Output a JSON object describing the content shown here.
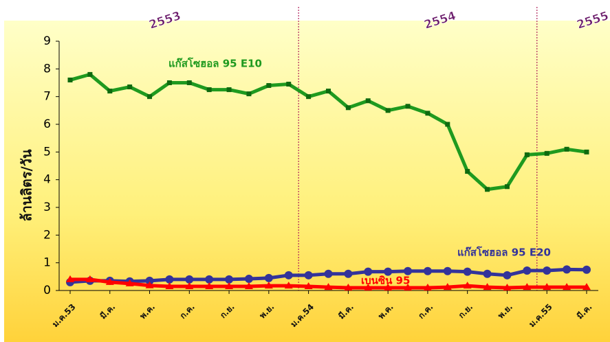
{
  "chart_data": {
    "type": "line",
    "ylabel": "ล้านลิตร/วัน",
    "annotations": [
      "2553",
      "2554",
      "2555"
    ],
    "categories": [
      "ม.ค.53",
      null,
      "มี.ค.",
      null,
      "พ.ค.",
      null,
      "ก.ค.",
      null,
      "ก.ย.",
      null,
      "พ.ย.",
      null,
      "ม.ค.54",
      null,
      "มี.ค.",
      null,
      "พ.ค.",
      null,
      "ก.ค.",
      null,
      "ก.ย.",
      null,
      "พ.ย.",
      null,
      "ม.ค.55",
      null,
      "มี.ค."
    ],
    "series": [
      {
        "name": "แก๊สโซฮอล 95 E10",
        "color": "#1f9a1f",
        "marker": "square",
        "values": [
          7.6,
          7.8,
          7.2,
          7.35,
          7.0,
          7.5,
          7.5,
          7.25,
          7.25,
          7.1,
          7.4,
          7.45,
          7.0,
          7.2,
          6.6,
          6.85,
          6.5,
          6.65,
          6.4,
          6.0,
          4.3,
          3.65,
          3.75,
          4.9,
          4.95,
          5.1,
          5.0
        ]
      },
      {
        "name": "แก๊สโซฮอล 95 E20",
        "color": "#33339a",
        "marker": "circle",
        "values": [
          0.3,
          0.35,
          0.35,
          0.33,
          0.35,
          0.4,
          0.4,
          0.4,
          0.4,
          0.42,
          0.45,
          0.55,
          0.55,
          0.6,
          0.6,
          0.68,
          0.68,
          0.7,
          0.7,
          0.7,
          0.68,
          0.6,
          0.55,
          0.72,
          0.72,
          0.76,
          0.75
        ]
      },
      {
        "name": "เบนซิน 95",
        "color": "#ff0000",
        "marker": "triangle",
        "values": [
          0.4,
          0.4,
          0.3,
          0.25,
          0.18,
          0.15,
          0.15,
          0.15,
          0.15,
          0.15,
          0.17,
          0.17,
          0.15,
          0.12,
          0.1,
          0.1,
          0.1,
          0.1,
          0.1,
          0.12,
          0.17,
          0.12,
          0.1,
          0.12,
          0.12,
          0.12,
          0.12
        ]
      }
    ],
    "ylim": [
      0,
      9
    ],
    "yticks": [
      0,
      1,
      2,
      3,
      4,
      5,
      6,
      7,
      8,
      9
    ],
    "grid": false
  }
}
